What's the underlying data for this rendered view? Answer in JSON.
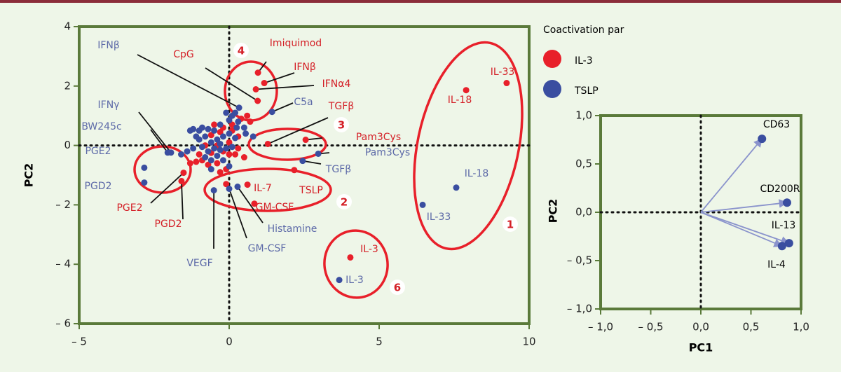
{
  "chart_data": [
    {
      "type": "scatter",
      "ylabel": "PC2",
      "legend_title": "Coactivation par",
      "xlim": [
        -5,
        10
      ],
      "ylim": [
        -6,
        4
      ],
      "xticks": [
        {
          "value": -5,
          "label": "– 5"
        },
        0,
        5,
        10
      ],
      "yticks": [
        4,
        2,
        0,
        {
          "value": -2,
          "label": "– 2"
        },
        {
          "value": -4,
          "label": "– 4"
        },
        {
          "value": -6,
          "label": "– 6"
        }
      ],
      "zero_lines": true,
      "groups": [
        "1",
        "2",
        "3",
        "4",
        "6"
      ],
      "series": [
        {
          "name": "IL-3",
          "color": "#e8202a",
          "label_color": "#d42027",
          "x": [
            9.25,
            7.9,
            2.17,
            4.04,
            2.55,
            1.29,
            0.61,
            0.84,
            0.96,
            1.17,
            0.89,
            0.95,
            -1.52,
            -1.59,
            -0.5,
            -0.2,
            0.1,
            0.4,
            0.6,
            -0.6,
            -0.3,
            0.1,
            0.3,
            -0.8,
            -0.4,
            0.0,
            0.3,
            -1.0,
            -0.6,
            -0.2,
            0.2,
            -0.9,
            -0.4,
            -0.1,
            -0.3,
            -1.3,
            -1.1,
            0.5,
            -0.7,
            0.0,
            -0.1,
            0.7
          ],
          "values": [
            2.1,
            1.86,
            -0.83,
            -3.77,
            0.19,
            0.05,
            -1.32,
            -1.96,
            2.45,
            2.1,
            1.89,
            1.5,
            -0.92,
            -1.2,
            0.7,
            0.6,
            0.7,
            0.9,
            1.0,
            0.35,
            0.45,
            0.5,
            0.3,
            0.0,
            0.0,
            0.1,
            -0.1,
            -0.3,
            -0.25,
            -0.2,
            -0.3,
            -0.5,
            -0.6,
            -0.8,
            -0.9,
            -0.6,
            -0.55,
            -0.4,
            -0.65,
            -0.3,
            -1.3,
            0.8
          ],
          "point_labels": [
            "IL-33",
            "IL-18",
            "TSLP",
            "IL-3",
            "Pam3Cys",
            "TGFβ",
            "IL-7",
            "GM-CSF",
            "Imiquimod",
            "IFNβ",
            "IFNα4",
            "CpG",
            "PGE2",
            "PGD2",
            null,
            null,
            null,
            null,
            null,
            null,
            null,
            null,
            null,
            null,
            null,
            null,
            null,
            null,
            null,
            null,
            null,
            null,
            null,
            null,
            null,
            null,
            null,
            null,
            null,
            null,
            null,
            null
          ]
        },
        {
          "name": "TSLP",
          "color": "#3a4ea0",
          "label_color": "#5d6aa8",
          "x": [
            7.57,
            6.45,
            3.67,
            2.97,
            2.45,
            1.43,
            0.28,
            0,
            -0.51,
            0.33,
            -1.94,
            -2.05,
            -2.83,
            -2.83,
            -1.3,
            -1.2,
            -1.0,
            -0.9,
            -0.7,
            -0.5,
            -0.3,
            0.0,
            0.1,
            0.2,
            -0.1,
            0.3,
            0.5,
            0.55,
            -1.0,
            -0.8,
            -0.6,
            -0.4,
            -0.2,
            0.0,
            0.2,
            -1.2,
            -0.9,
            -0.7,
            -0.5,
            -0.3,
            -0.1,
            0.1,
            -0.8,
            -0.6,
            -0.4,
            -1.4,
            -1.6,
            -0.2,
            0.0,
            -0.6,
            0.8,
            -1.1,
            -0.3,
            0.25
          ],
          "values": [
            -1.42,
            -2.0,
            -4.53,
            -0.28,
            -0.52,
            1.13,
            -1.39,
            -1.46,
            -1.51,
            1.27,
            -0.24,
            -0.24,
            -0.75,
            -1.25,
            0.5,
            0.55,
            0.5,
            0.6,
            0.55,
            0.5,
            0.7,
            0.85,
            1.0,
            1.1,
            1.1,
            0.8,
            0.6,
            0.4,
            0.2,
            0.3,
            0.1,
            0.2,
            0.3,
            0.4,
            0.25,
            -0.1,
            -0.05,
            -0.2,
            -0.1,
            -0.15,
            -0.1,
            -0.05,
            -0.4,
            -0.5,
            -0.35,
            -0.2,
            -0.3,
            -0.5,
            -0.7,
            -0.8,
            0.3,
            0.3,
            0.05,
            0.6
          ],
          "point_labels": [
            "IL-18",
            "IL-33",
            "IL-3",
            "Pam3Cys",
            "TGFβ",
            "C5a",
            "Histamine",
            "GM-CSF",
            "VEGF",
            "IFNβ",
            "IFNγ",
            "BW245c",
            "PGE2",
            "PGD2",
            null,
            null,
            null,
            null,
            null,
            null,
            null,
            null,
            null,
            null,
            null,
            null,
            null,
            null,
            null,
            null,
            null,
            null,
            null,
            null,
            null,
            null,
            null,
            null,
            null,
            null,
            null,
            null,
            null,
            null,
            null,
            null,
            null,
            null,
            null,
            null,
            null,
            null,
            null,
            null
          ]
        }
      ]
    },
    {
      "type": "loadings",
      "xlabel": "PC1",
      "ylabel": "PC2",
      "xlim": [
        -1,
        1
      ],
      "ylim": [
        -1,
        1
      ],
      "xticks": [
        {
          "value": -1,
          "label": "– 1,0"
        },
        {
          "value": -0.5,
          "label": "– 0,5"
        },
        {
          "value": 0,
          "label": "0,0"
        },
        {
          "value": 0.5,
          "label": "0,5"
        },
        {
          "value": 1,
          "label": "1,0"
        }
      ],
      "yticks": [
        {
          "value": 1,
          "label": "1,0"
        },
        {
          "value": 0.5,
          "label": "0,5"
        },
        {
          "value": 0,
          "label": "0,0"
        },
        {
          "value": -0.5,
          "label": "– 0,5"
        },
        {
          "value": -1,
          "label": "– 1,0"
        }
      ],
      "zero_lines": true,
      "color": "#3a4ea0",
      "arrow_color": "#8a93cc",
      "x": [
        0.61,
        0.86,
        0.88,
        0.81
      ],
      "values": [
        0.76,
        0.1,
        -0.32,
        -0.35
      ],
      "point_labels": [
        "CD63",
        "CD200R",
        "IL-13",
        "IL-4"
      ]
    }
  ]
}
